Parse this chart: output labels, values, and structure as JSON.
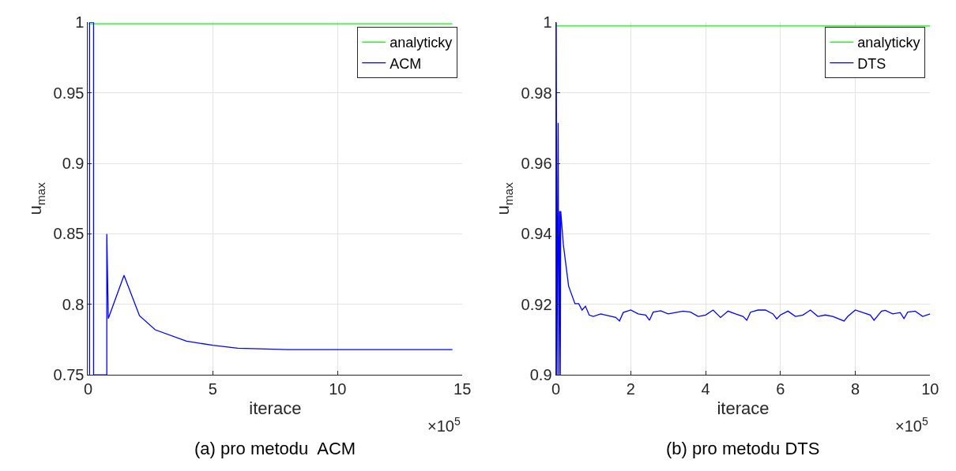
{
  "chart_data": [
    {
      "type": "line",
      "title": "(a) pro metodu  ACM",
      "xlabel": "iterace",
      "ylabel": "u$_{max}$",
      "annotations": [
        "×10$^{5}$"
      ],
      "xlim": [
        0,
        15
      ],
      "xticks": [
        0,
        5,
        10,
        15
      ],
      "ylim": [
        0.75,
        1
      ],
      "yticks": [
        0.75,
        0.8,
        0.85,
        0.9,
        0.95,
        1
      ],
      "grid": true,
      "legend": "top right",
      "marker": "none",
      "line_style": "solid",
      "series": [
        {
          "name": "analyticky",
          "color": "#00ff00",
          "x": [
            0,
            14.6
          ],
          "values": [
            0.999,
            0.999
          ]
        },
        {
          "name": "ACM",
          "color": "#0000ff",
          "x": [
            0.06,
            0.06,
            0.22,
            0.22,
            0.75,
            0.75,
            0.81,
            1.44,
            2.06,
            2.69,
            3.94,
            5,
            6,
            8,
            10,
            14.6
          ],
          "values": [
            0.75,
            1,
            1,
            0.75,
            0.75,
            0.85,
            0.79,
            0.8206,
            0.792,
            0.782,
            0.774,
            0.771,
            0.769,
            0.768,
            0.768,
            0.768
          ]
        }
      ]
    },
    {
      "type": "line",
      "title": "(b) pro metodu DTS",
      "xlabel": "iterace",
      "ylabel": "u$_{max}$",
      "annotations": [
        "×10$^{5}$"
      ],
      "xlim": [
        0,
        10
      ],
      "xticks": [
        0,
        2,
        4,
        6,
        8,
        10
      ],
      "ylim": [
        0.9,
        1
      ],
      "yticks": [
        0.9,
        0.92,
        0.94,
        0.96,
        0.98,
        1
      ],
      "grid": true,
      "legend": "top right",
      "marker": "none",
      "line_style": "solid",
      "series": [
        {
          "name": "analyticky",
          "color": "#00ff00",
          "x": [
            0,
            10
          ],
          "values": [
            0.999,
            0.999
          ]
        },
        {
          "name": "DTS",
          "color": "#0000ff",
          "x": [
            0,
            0.01,
            0.03,
            0.06,
            0.08,
            0.1,
            0.12,
            0.13,
            0.2,
            0.34,
            0.51,
            0.61,
            0.7,
            0.79,
            0.89,
            1.0,
            1.2,
            1.4,
            1.6,
            1.7,
            1.8,
            2.0,
            2.2,
            2.4,
            2.5,
            2.6,
            2.8,
            3.0,
            3.2,
            3.4,
            3.6,
            3.8,
            4.0,
            4.2,
            4.4,
            4.6,
            4.8,
            5.0,
            5.1,
            5.2,
            5.4,
            5.6,
            5.8,
            5.9,
            6.0,
            6.2,
            6.4,
            6.6,
            6.8,
            7.0,
            7.2,
            7.4,
            7.7,
            7.8,
            8.0,
            8.2,
            8.4,
            8.5,
            8.7,
            8.8,
            9.0,
            9.2,
            9.3,
            9.4,
            9.6,
            9.8,
            10.0
          ],
          "values": [
            0.9,
            1,
            0.9,
            0.9715,
            0.9,
            0.9465,
            0.9,
            0.9465,
            0.937,
            0.9252,
            0.9202,
            0.9202,
            0.9184,
            0.9195,
            0.917,
            0.9166,
            0.9173,
            0.9168,
            0.9163,
            0.9153,
            0.9177,
            0.9184,
            0.9173,
            0.917,
            0.9155,
            0.9178,
            0.9182,
            0.9173,
            0.9177,
            0.9181,
            0.9178,
            0.9166,
            0.917,
            0.9184,
            0.9163,
            0.9181,
            0.9173,
            0.9166,
            0.9155,
            0.9178,
            0.9184,
            0.9184,
            0.9173,
            0.9159,
            0.917,
            0.9181,
            0.9166,
            0.917,
            0.9184,
            0.9166,
            0.917,
            0.9166,
            0.9153,
            0.9166,
            0.9184,
            0.9177,
            0.917,
            0.9155,
            0.9181,
            0.9183,
            0.9173,
            0.9177,
            0.916,
            0.9178,
            0.9181,
            0.9166,
            0.9173
          ]
        }
      ]
    }
  ]
}
